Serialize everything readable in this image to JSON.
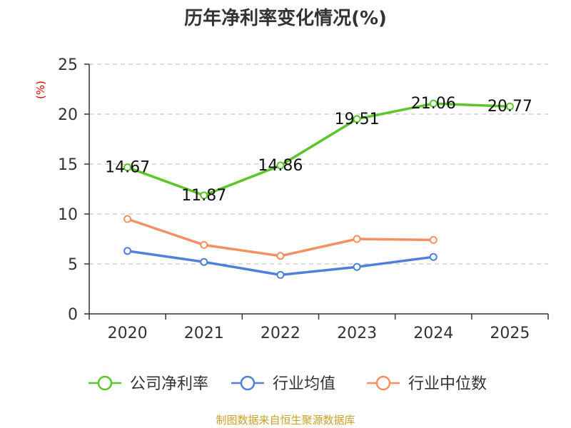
{
  "chart_data": {
    "type": "line",
    "title": "历年净利率变化情况(%)",
    "unit_label": "(%)",
    "categories": [
      "2020",
      "2021",
      "2022",
      "2023",
      "2024",
      "2025"
    ],
    "y_ticks": [
      "0",
      "5",
      "10",
      "15",
      "20",
      "25"
    ],
    "ylim": [
      0,
      25
    ],
    "grid": true,
    "legend_position": "bottom",
    "series": [
      {
        "name": "公司净利率",
        "color": "#5cc52a",
        "values": [
          14.67,
          11.87,
          14.86,
          19.51,
          21.06,
          20.77
        ],
        "labels": [
          "14.67",
          "11.87",
          "14.86",
          "19.51",
          "21.06",
          "20.77"
        ]
      },
      {
        "name": "行业均值",
        "color": "#4f7fd9",
        "values": [
          6.3,
          5.2,
          3.9,
          4.7,
          5.7,
          null
        ]
      },
      {
        "name": "行业中位数",
        "color": "#f59062",
        "values": [
          9.5,
          6.9,
          5.8,
          7.5,
          7.4,
          null
        ]
      }
    ],
    "source": "制图数据来自恒生聚源数据库"
  }
}
